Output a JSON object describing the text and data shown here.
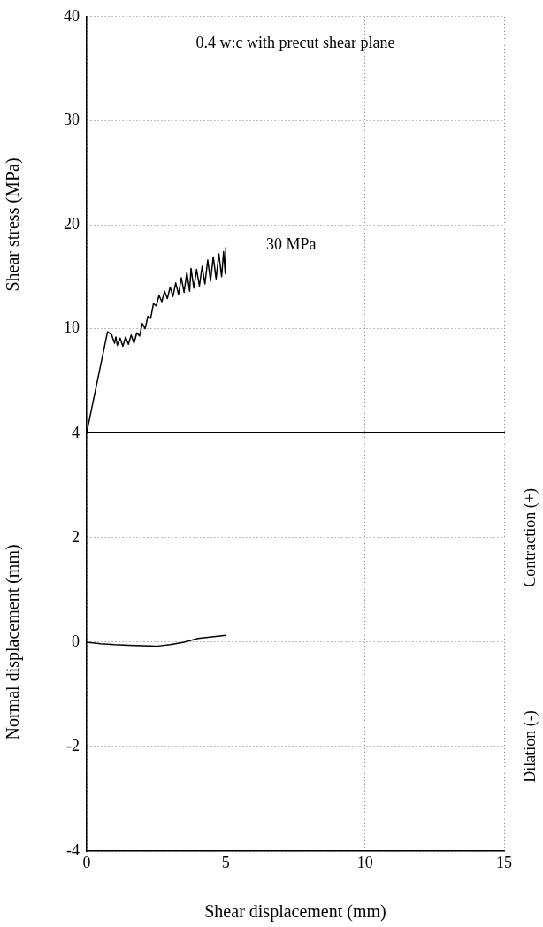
{
  "chart_data": [
    {
      "type": "line",
      "title": "0.4 w:c with precut shear plane",
      "ylabel": "Shear stress (MPa)",
      "annotations": [
        "30 MPa"
      ],
      "xlim": [
        0,
        15
      ],
      "xticks": [
        0,
        5,
        10,
        15
      ],
      "ylim": [
        0,
        40
      ],
      "yticks": [
        {
          "value": 0,
          "label": null
        },
        10,
        20,
        30,
        40
      ],
      "grid": true,
      "tick_labels": "y",
      "marker": "none",
      "line_style": "solid",
      "series": [
        {
          "color": "#000000",
          "x": [
            0,
            0.75,
            0.9,
            1.0,
            1.05,
            1.1,
            1.2,
            1.3,
            1.4,
            1.5,
            1.6,
            1.7,
            1.8,
            1.9,
            2.0,
            2.1,
            2.2,
            2.3,
            2.4,
            2.5,
            2.6,
            2.7,
            2.8,
            2.9,
            3.0,
            3.1,
            3.2,
            3.3,
            3.4,
            3.5,
            3.6,
            3.7,
            3.75,
            3.85,
            3.95,
            4.05,
            4.15,
            4.25,
            4.35,
            4.45,
            4.55,
            4.65,
            4.75,
            4.85,
            4.92,
            4.98,
            5.0
          ],
          "values": [
            0,
            9.7,
            9.4,
            8.6,
            9.2,
            8.4,
            9.1,
            8.3,
            9.2,
            8.5,
            9.4,
            8.6,
            9.6,
            9.3,
            10.5,
            10.0,
            11.2,
            11.0,
            12.4,
            12.2,
            13.2,
            12.6,
            13.6,
            12.9,
            14.0,
            13.1,
            14.4,
            13.3,
            14.9,
            13.5,
            15.4,
            13.6,
            15.8,
            13.9,
            15.7,
            14.1,
            16.0,
            14.3,
            16.6,
            14.6,
            16.9,
            14.8,
            17.2,
            15.0,
            17.4,
            15.3,
            17.8
          ]
        }
      ]
    },
    {
      "type": "line",
      "xlabel": "Shear displacement (mm)",
      "ylabel": "Normal displacement (mm)",
      "annotations": [
        "Contraction (+)",
        "Dilation (-)"
      ],
      "xlim": [
        0,
        15
      ],
      "xticks": [
        0,
        5,
        10,
        15
      ],
      "ylim": [
        -4,
        4
      ],
      "yticks": [
        -4,
        -2,
        0,
        2,
        4
      ],
      "grid": true,
      "marker": "none",
      "line_style": "solid",
      "series": [
        {
          "color": "#000000",
          "x": [
            0,
            0.5,
            1,
            1.5,
            2,
            2.5,
            3,
            3.5,
            4,
            4.5,
            5
          ],
          "values": [
            0,
            -0.03,
            -0.05,
            -0.06,
            -0.07,
            -0.08,
            -0.05,
            0,
            0.07,
            0.1,
            0.13
          ]
        }
      ]
    }
  ]
}
